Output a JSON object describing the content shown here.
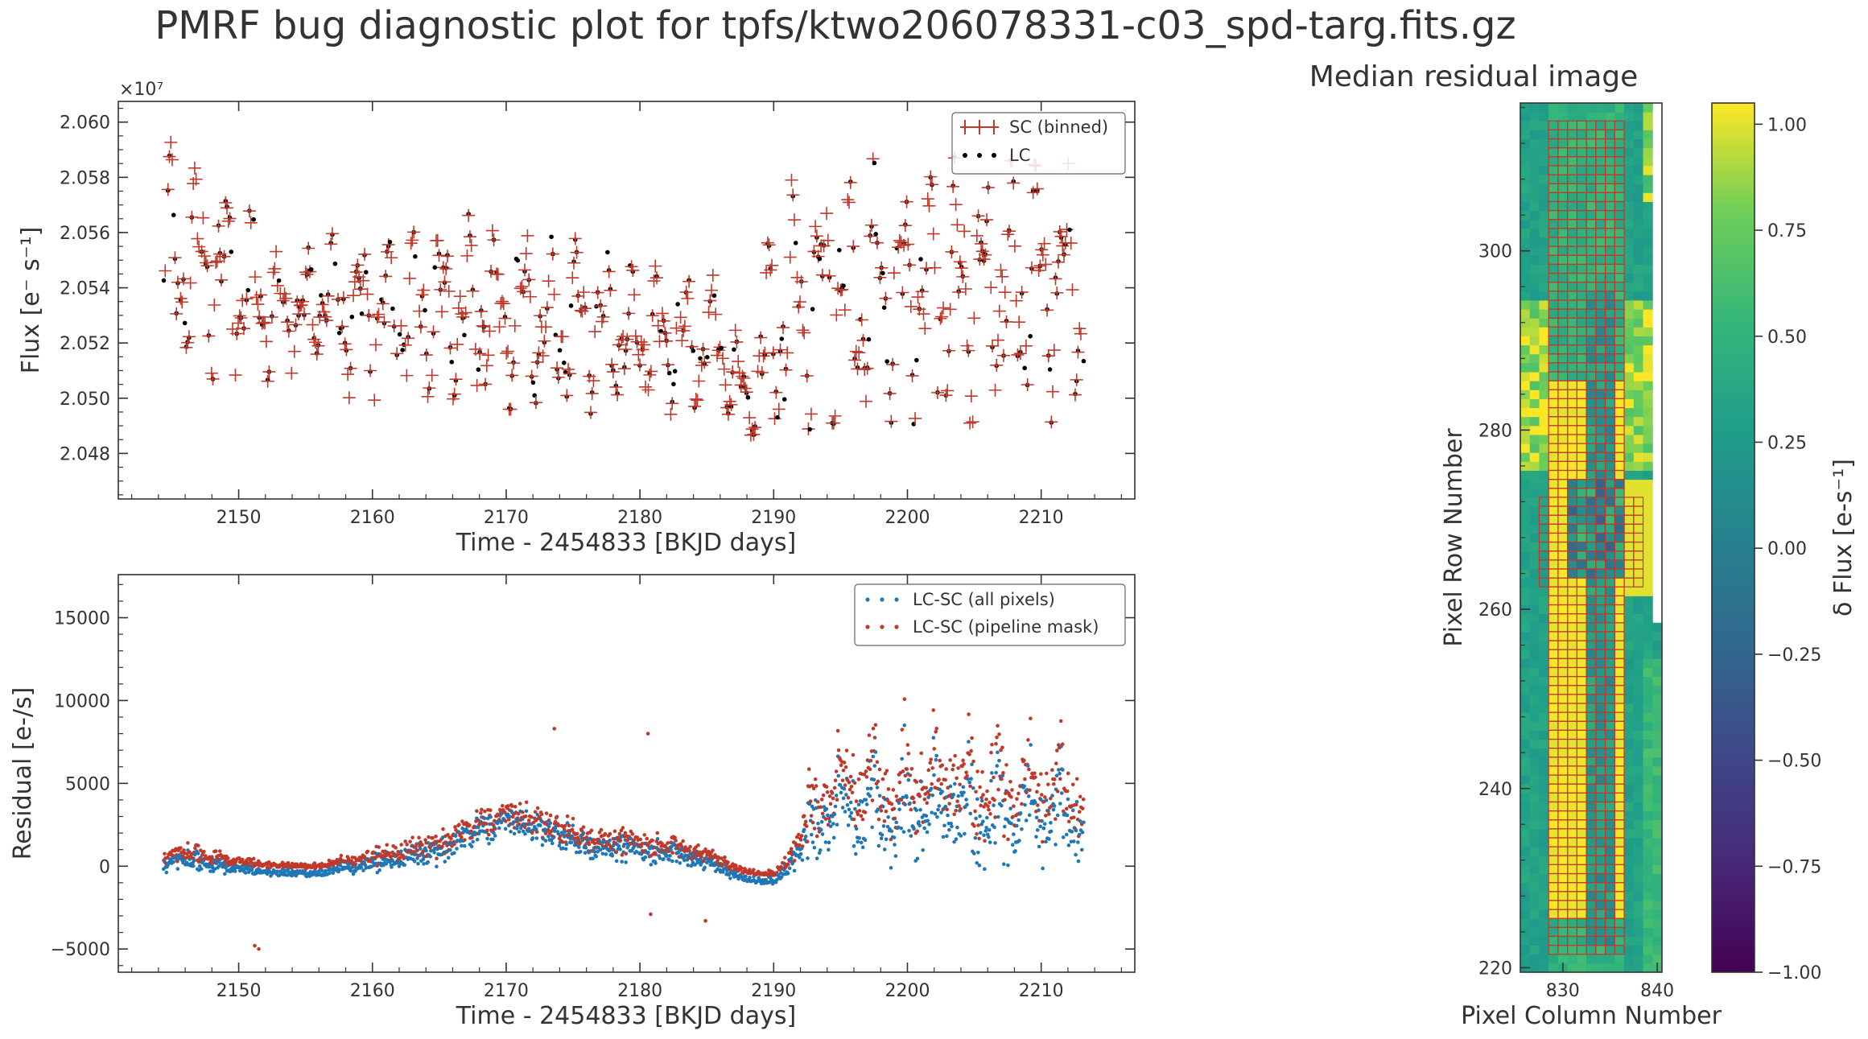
{
  "figure_title": "PMRF bug diagnostic plot for tpfs/ktwo206078331-c03_spd-targ.fits.gz",
  "colors": {
    "sc": "#c0392b",
    "lc": "#000000",
    "all_pixels": "#1f77b4",
    "pipeline_mask": "#c0392b"
  },
  "chart_data": [
    {
      "type": "scatter",
      "title": "",
      "xlabel": "Time - 2454833 [BKJD days]",
      "ylabel": "Flux [e⁻ s⁻¹]",
      "y_multiplier": "×10⁷",
      "xlim": [
        2141,
        2217
      ],
      "ylim": [
        20.4635,
        20.6075
      ],
      "xticks": [
        "2150",
        "2160",
        "2170",
        "2180",
        "2190",
        "2200",
        "2210"
      ],
      "yticks": [
        "2.048",
        "2.050",
        "2.052",
        "2.054",
        "2.056",
        "2.058",
        "2.060"
      ],
      "legend": "top-right",
      "series": [
        {
          "name": "SC (binned)",
          "marker": "+",
          "x_range": [
            2144.4,
            2213.2
          ],
          "value_units": "1e7 e-/s"
        },
        {
          "name": "LC",
          "marker": "dot",
          "x_range": [
            2144.4,
            2213.2
          ],
          "value_units": "1e7 e-/s"
        }
      ],
      "envelope": {
        "x": [
          2144.4,
          2146,
          2148,
          2150,
          2152,
          2154,
          2156,
          2158,
          2160,
          2162,
          2164,
          2166,
          2168,
          2170,
          2172,
          2174,
          2176,
          2178,
          2180,
          2182,
          2184,
          2186,
          2188,
          2190,
          2192,
          2194,
          2196,
          2198,
          2200,
          2202,
          2204,
          2206,
          2208,
          2210,
          2212,
          2213.2
        ],
        "low": [
          20.508,
          20.507,
          20.507,
          20.506,
          20.505,
          20.508,
          20.512,
          20.5,
          20.498,
          20.498,
          20.498,
          20.497,
          20.497,
          20.496,
          20.496,
          20.495,
          20.495,
          20.494,
          20.494,
          20.494,
          20.495,
          20.495,
          20.485,
          20.478,
          20.488,
          20.491,
          20.491,
          20.492,
          20.491,
          20.491,
          20.491,
          20.491,
          20.491,
          20.491,
          20.492,
          20.492
        ],
        "high": [
          20.593,
          20.592,
          20.586,
          20.574,
          20.566,
          20.545,
          20.562,
          20.563,
          20.563,
          20.563,
          20.564,
          20.565,
          20.567,
          20.564,
          20.562,
          20.559,
          20.557,
          20.553,
          20.549,
          20.547,
          20.546,
          20.544,
          20.511,
          20.573,
          20.582,
          20.585,
          20.586,
          20.587,
          20.587,
          20.587,
          20.587,
          20.586,
          20.586,
          20.586,
          20.585,
          20.585
        ]
      }
    },
    {
      "type": "scatter",
      "title": "",
      "xlabel": "Time - 2454833 [BKJD days]",
      "ylabel": "Residual [e-/s]",
      "xlim": [
        2141,
        2217
      ],
      "ylim": [
        -6400,
        17600
      ],
      "xticks": [
        "2150",
        "2160",
        "2170",
        "2180",
        "2190",
        "2200",
        "2210"
      ],
      "yticks": [
        "−5000",
        "0",
        "5000",
        "10000",
        "15000"
      ],
      "legend": "top-right",
      "series": [
        {
          "name": "LC-SC (all pixels)",
          "marker": "dot"
        },
        {
          "name": "LC-SC (pipeline mask)",
          "marker": "dot"
        }
      ],
      "trend": {
        "x": [
          2144.4,
          2146,
          2148,
          2150,
          2152,
          2154,
          2156,
          2158,
          2160,
          2162,
          2164,
          2166,
          2168,
          2170,
          2172,
          2174,
          2176,
          2178,
          2180,
          2182,
          2184,
          2186,
          2188,
          2190,
          2191,
          2192,
          2193,
          2195,
          2200,
          2205,
          2210,
          2213.2
        ],
        "center": [
          500,
          800,
          500,
          300,
          100,
          0,
          0,
          300,
          600,
          900,
          1300,
          1700,
          2600,
          3200,
          2800,
          2200,
          1700,
          1500,
          1400,
          1200,
          900,
          400,
          -300,
          -400,
          200,
          1500,
          3000,
          4000,
          4200,
          4000,
          3800,
          3500
        ],
        "spread": [
          600,
          900,
          700,
          500,
          300,
          250,
          250,
          500,
          700,
          900,
          1100,
          1300,
          1400,
          1400,
          1300,
          1300,
          1200,
          1100,
          1000,
          900,
          800,
          500,
          300,
          300,
          800,
          1500,
          2500,
          3300,
          3500,
          3500,
          3300,
          3000
        ]
      },
      "annotated_points": [
        {
          "x": 2151.5,
          "y": -5000
        },
        {
          "x": 2151.2,
          "y": -4800
        },
        {
          "x": 2180.8,
          "y": -2900
        },
        {
          "x": 2184.9,
          "y": -3300
        },
        {
          "x": 2173.6,
          "y": 8300
        },
        {
          "x": 2180.6,
          "y": 8000
        }
      ]
    },
    {
      "type": "heatmap",
      "title": "Median residual image",
      "xlabel": "Pixel Column Number",
      "ylabel": "Pixel Row Number",
      "xlim": [
        825.5,
        840.5
      ],
      "ylim": [
        219.5,
        316.5
      ],
      "xticks": [
        "830",
        "840"
      ],
      "yticks": [
        "220",
        "240",
        "260",
        "280",
        "300"
      ],
      "colormap": "viridis",
      "colorbar_label": "δ Flux [e-s⁻¹]",
      "colorbar_range": [
        -1.0,
        1.05
      ],
      "colorbar_ticks": [
        "−1.00",
        "−0.75",
        "−0.50",
        "−0.25",
        "0.00",
        "0.25",
        "0.50",
        "0.75",
        "1.00"
      ],
      "mask_outline_color": "#c0392b"
    }
  ]
}
